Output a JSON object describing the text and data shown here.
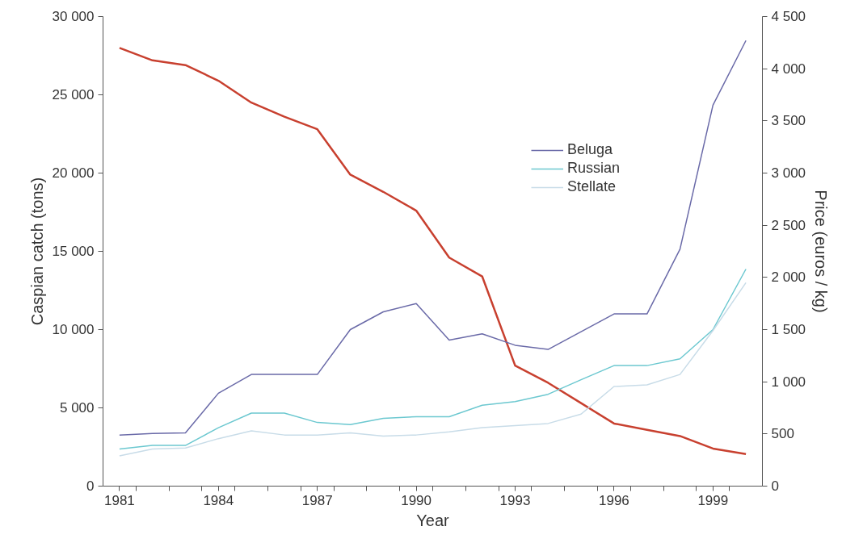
{
  "chart_data": {
    "type": "line",
    "xlabel": "Year",
    "ylabel": "Caspian catch (tons)",
    "y2label": "Price (euros / kg)",
    "x": [
      1981,
      1982,
      1983,
      1984,
      1985,
      1986,
      1987,
      1988,
      1989,
      1990,
      1991,
      1992,
      1993,
      1994,
      1995,
      1996,
      1997,
      1998,
      1999,
      2000
    ],
    "series": [
      {
        "color": "#c8402f",
        "values": [
          28000,
          27200,
          26900,
          25900,
          24500,
          23600,
          22800,
          19900,
          18800,
          17600,
          14600,
          13400,
          7700,
          6600,
          5300,
          4000,
          3600,
          3200,
          2400,
          2050
        ]
      },
      {
        "name": "Beluga",
        "color": "#6a6aa8",
        "axis": "y2",
        "values": [
          490,
          505,
          510,
          890,
          1070,
          1070,
          1070,
          1500,
          1670,
          1750,
          1400,
          1460,
          1350,
          1310,
          1480,
          1650,
          1650,
          2270,
          3650,
          4270
        ]
      },
      {
        "name": "Russian",
        "color": "#6cc8d0",
        "axis": "y2",
        "values": [
          355,
          390,
          390,
          560,
          700,
          700,
          610,
          590,
          650,
          665,
          665,
          775,
          810,
          880,
          1020,
          1155,
          1155,
          1220,
          1500,
          2080
        ]
      },
      {
        "name": "Stellate",
        "color": "#c8dce8",
        "axis": "y2",
        "values": [
          290,
          355,
          365,
          455,
          530,
          490,
          490,
          510,
          480,
          490,
          520,
          560,
          580,
          600,
          690,
          955,
          970,
          1070,
          1490,
          1950
        ]
      }
    ],
    "xlim": [
      1980.5,
      2000.5
    ],
    "xticks": [
      {
        "value": 1981,
        "label": "1981"
      },
      {
        "value": 1984,
        "label": "1984"
      },
      {
        "value": 1987,
        "label": "1987"
      },
      {
        "value": 1990,
        "label": "1990"
      },
      {
        "value": 1993,
        "label": "1993"
      },
      {
        "value": 1996,
        "label": "1996"
      },
      {
        "value": 1999,
        "label": "1999"
      },
      {
        "value": 1981.5,
        "label": null
      },
      {
        "value": 1982.5,
        "label": null
      },
      {
        "value": 1983.5,
        "label": null
      },
      {
        "value": 1984.5,
        "label": null
      },
      {
        "value": 1985.5,
        "label": null
      },
      {
        "value": 1986.5,
        "label": null
      },
      {
        "value": 1987.5,
        "label": null
      },
      {
        "value": 1988.5,
        "label": null
      },
      {
        "value": 1989.5,
        "label": null
      },
      {
        "value": 1990.5,
        "label": null
      },
      {
        "value": 1991.5,
        "label": null
      },
      {
        "value": 1992.5,
        "label": null
      },
      {
        "value": 1993.5,
        "label": null
      },
      {
        "value": 1994.5,
        "label": null
      },
      {
        "value": 1995.5,
        "label": null
      },
      {
        "value": 1996.5,
        "label": null
      },
      {
        "value": 1997.5,
        "label": null
      },
      {
        "value": 1998.5,
        "label": null
      },
      {
        "value": 1999.5,
        "label": null
      }
    ],
    "ylim": [
      0,
      30000
    ],
    "yticks": [
      0,
      {
        "value": 5000,
        "label": "5 000"
      },
      {
        "value": 10000,
        "label": "10 000"
      },
      {
        "value": 15000,
        "label": "15 000"
      },
      {
        "value": 20000,
        "label": "20 000"
      },
      {
        "value": 25000,
        "label": "25 000"
      },
      {
        "value": 30000,
        "label": "30 000"
      }
    ],
    "y2lim": [
      0,
      4500
    ],
    "y2ticks": [
      0,
      500,
      {
        "value": 1000,
        "label": "1 000"
      },
      {
        "value": 1500,
        "label": "1 500"
      },
      {
        "value": 2000,
        "label": "2 000"
      },
      {
        "value": 2500,
        "label": "2 500"
      },
      {
        "value": 3000,
        "label": "3 000"
      },
      {
        "value": 3500,
        "label": "3 500"
      },
      {
        "value": 4000,
        "label": "4 000"
      },
      {
        "value": 4500,
        "label": "4 500"
      }
    ],
    "grid": false,
    "legend": "top",
    "marker": "none",
    "line_style": "solid"
  }
}
